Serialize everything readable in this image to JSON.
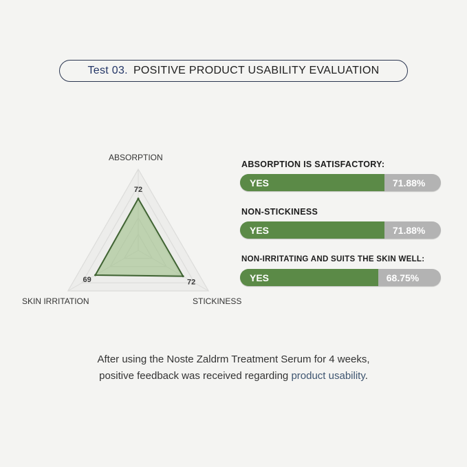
{
  "title": {
    "test": "Test 03.",
    "text": "POSITIVE PRODUCT USABILITY EVALUATION"
  },
  "chart_data": {
    "type": "radar",
    "axes": [
      "ABSORPTION",
      "STICKINESS",
      "SKIN IRRITATION"
    ],
    "values": [
      72,
      72,
      69
    ],
    "colors": {
      "fill": "#9fbf88",
      "stroke": "#3f6332"
    }
  },
  "results": [
    {
      "question": "ABSORPTION IS SATISFACTORY:",
      "answer": "YES",
      "percent": "71.88%",
      "value": 71.88
    },
    {
      "question": "NON-STICKINESS",
      "answer": "YES",
      "percent": "71.88%",
      "value": 71.88
    },
    {
      "question": "NON-IRRITATING AND SUITS THE SKIN WELL:",
      "answer": "YES",
      "percent": "68.75%",
      "value": 68.75
    }
  ],
  "footer": {
    "line1": "After using the Noste Zaldrm Treatment Serum for 4 weeks,",
    "line2_pre": "positive feedback was received regarding ",
    "line2_hl": "product usability",
    "line2_post": "."
  },
  "colors": {
    "green": "#5b8a47",
    "gray": "#b3b3b3",
    "navy": "#233566"
  }
}
